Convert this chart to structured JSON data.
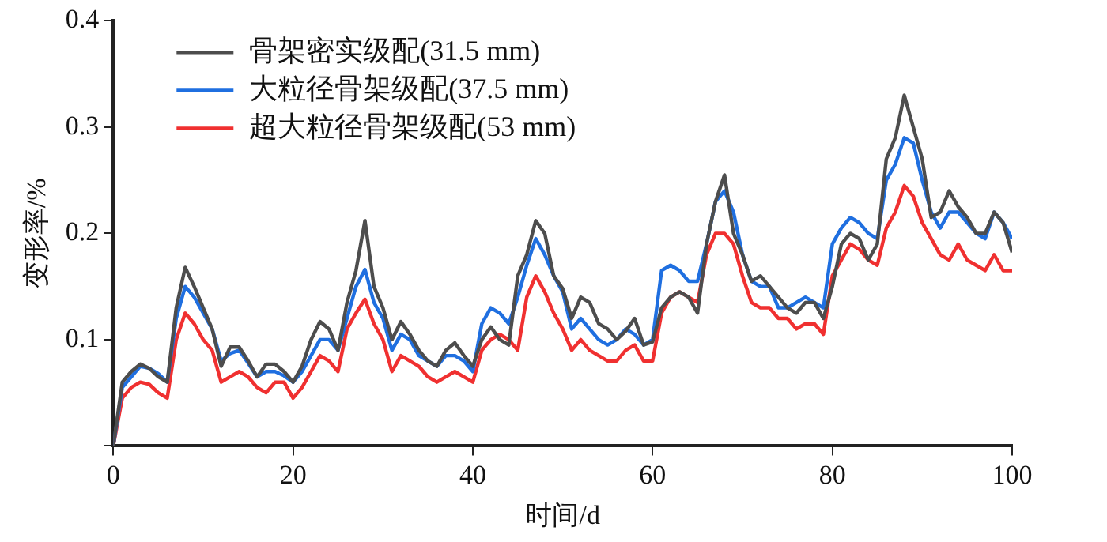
{
  "chart_data": {
    "type": "line",
    "xlabel": "时间/d",
    "ylabel": "变形率/%",
    "x": [
      0,
      1,
      2,
      3,
      4,
      5,
      6,
      7,
      8,
      9,
      10,
      11,
      12,
      13,
      14,
      15,
      16,
      17,
      18,
      19,
      20,
      21,
      22,
      23,
      24,
      25,
      26,
      27,
      28,
      29,
      30,
      31,
      32,
      33,
      34,
      35,
      36,
      37,
      38,
      39,
      40,
      41,
      42,
      43,
      44,
      45,
      46,
      47,
      48,
      49,
      50,
      51,
      52,
      53,
      54,
      55,
      56,
      57,
      58,
      59,
      60,
      61,
      62,
      63,
      64,
      65,
      66,
      67,
      68,
      69,
      70,
      71,
      72,
      73,
      74,
      75,
      76,
      77,
      78,
      79,
      80,
      81,
      82,
      83,
      84,
      85,
      86,
      87,
      88,
      89,
      90,
      91,
      92,
      93,
      94,
      95,
      96,
      97,
      98,
      99,
      100
    ],
    "series": [
      {
        "name": "骨架密实级配(31.5 mm)",
        "color": "#4d4d4d",
        "values": [
          0,
          0.06,
          0.07,
          0.077,
          0.073,
          0.065,
          0.06,
          0.13,
          0.168,
          0.15,
          0.13,
          0.11,
          0.075,
          0.093,
          0.093,
          0.08,
          0.065,
          0.077,
          0.077,
          0.07,
          0.06,
          0.075,
          0.1,
          0.117,
          0.11,
          0.09,
          0.135,
          0.165,
          0.212,
          0.15,
          0.13,
          0.1,
          0.117,
          0.105,
          0.09,
          0.08,
          0.075,
          0.09,
          0.097,
          0.085,
          0.075,
          0.1,
          0.112,
          0.1,
          0.095,
          0.16,
          0.18,
          0.212,
          0.2,
          0.16,
          0.148,
          0.12,
          0.14,
          0.135,
          0.115,
          0.11,
          0.1,
          0.108,
          0.12,
          0.095,
          0.098,
          0.13,
          0.14,
          0.145,
          0.14,
          0.125,
          0.19,
          0.23,
          0.255,
          0.2,
          0.18,
          0.155,
          0.16,
          0.15,
          0.14,
          0.13,
          0.125,
          0.135,
          0.135,
          0.12,
          0.15,
          0.19,
          0.2,
          0.195,
          0.175,
          0.19,
          0.27,
          0.29,
          0.33,
          0.3,
          0.27,
          0.215,
          0.22,
          0.24,
          0.225,
          0.215,
          0.2,
          0.2,
          0.22,
          0.21,
          0.182
        ]
      },
      {
        "name": "大粒径骨架级配(37.5 mm)",
        "color": "#1f6fe0",
        "values": [
          0,
          0.055,
          0.065,
          0.075,
          0.073,
          0.068,
          0.06,
          0.12,
          0.15,
          0.14,
          0.125,
          0.11,
          0.08,
          0.087,
          0.09,
          0.078,
          0.065,
          0.07,
          0.07,
          0.066,
          0.06,
          0.07,
          0.085,
          0.1,
          0.1,
          0.09,
          0.12,
          0.15,
          0.166,
          0.135,
          0.12,
          0.09,
          0.105,
          0.1,
          0.085,
          0.08,
          0.075,
          0.085,
          0.085,
          0.08,
          0.07,
          0.115,
          0.13,
          0.125,
          0.115,
          0.14,
          0.17,
          0.195,
          0.18,
          0.16,
          0.145,
          0.11,
          0.12,
          0.11,
          0.1,
          0.095,
          0.1,
          0.11,
          0.105,
          0.095,
          0.1,
          0.165,
          0.17,
          0.165,
          0.155,
          0.155,
          0.19,
          0.23,
          0.24,
          0.22,
          0.18,
          0.155,
          0.15,
          0.15,
          0.13,
          0.13,
          0.135,
          0.14,
          0.135,
          0.13,
          0.19,
          0.205,
          0.215,
          0.21,
          0.2,
          0.195,
          0.25,
          0.265,
          0.29,
          0.285,
          0.25,
          0.22,
          0.205,
          0.22,
          0.22,
          0.21,
          0.2,
          0.195,
          0.22,
          0.21,
          0.195
        ]
      },
      {
        "name": "超大粒径骨架级配(53 mm)",
        "color": "#f03030",
        "values": [
          0,
          0.045,
          0.055,
          0.06,
          0.058,
          0.05,
          0.045,
          0.1,
          0.125,
          0.115,
          0.1,
          0.09,
          0.06,
          0.065,
          0.07,
          0.065,
          0.055,
          0.05,
          0.06,
          0.06,
          0.045,
          0.055,
          0.07,
          0.085,
          0.08,
          0.07,
          0.11,
          0.125,
          0.138,
          0.115,
          0.1,
          0.07,
          0.085,
          0.08,
          0.075,
          0.065,
          0.06,
          0.065,
          0.07,
          0.065,
          0.06,
          0.09,
          0.1,
          0.105,
          0.1,
          0.09,
          0.14,
          0.16,
          0.145,
          0.125,
          0.11,
          0.09,
          0.1,
          0.09,
          0.085,
          0.08,
          0.08,
          0.09,
          0.095,
          0.08,
          0.08,
          0.125,
          0.14,
          0.145,
          0.14,
          0.135,
          0.18,
          0.2,
          0.2,
          0.19,
          0.16,
          0.135,
          0.13,
          0.13,
          0.12,
          0.12,
          0.11,
          0.115,
          0.115,
          0.105,
          0.16,
          0.175,
          0.19,
          0.185,
          0.175,
          0.17,
          0.205,
          0.22,
          0.245,
          0.235,
          0.21,
          0.195,
          0.18,
          0.175,
          0.19,
          0.175,
          0.17,
          0.165,
          0.18,
          0.165,
          0.165
        ]
      }
    ],
    "xlim": [
      0,
      100
    ],
    "xticks": [
      0,
      20,
      40,
      60,
      80,
      100
    ],
    "ylim": [
      0,
      0.4
    ],
    "yticks": [
      {
        "value": 0,
        "label": null
      },
      0.1,
      0.2,
      0.3,
      0.4
    ],
    "grid": false,
    "legend": "top left",
    "marker": "none",
    "line_style": "solid"
  }
}
